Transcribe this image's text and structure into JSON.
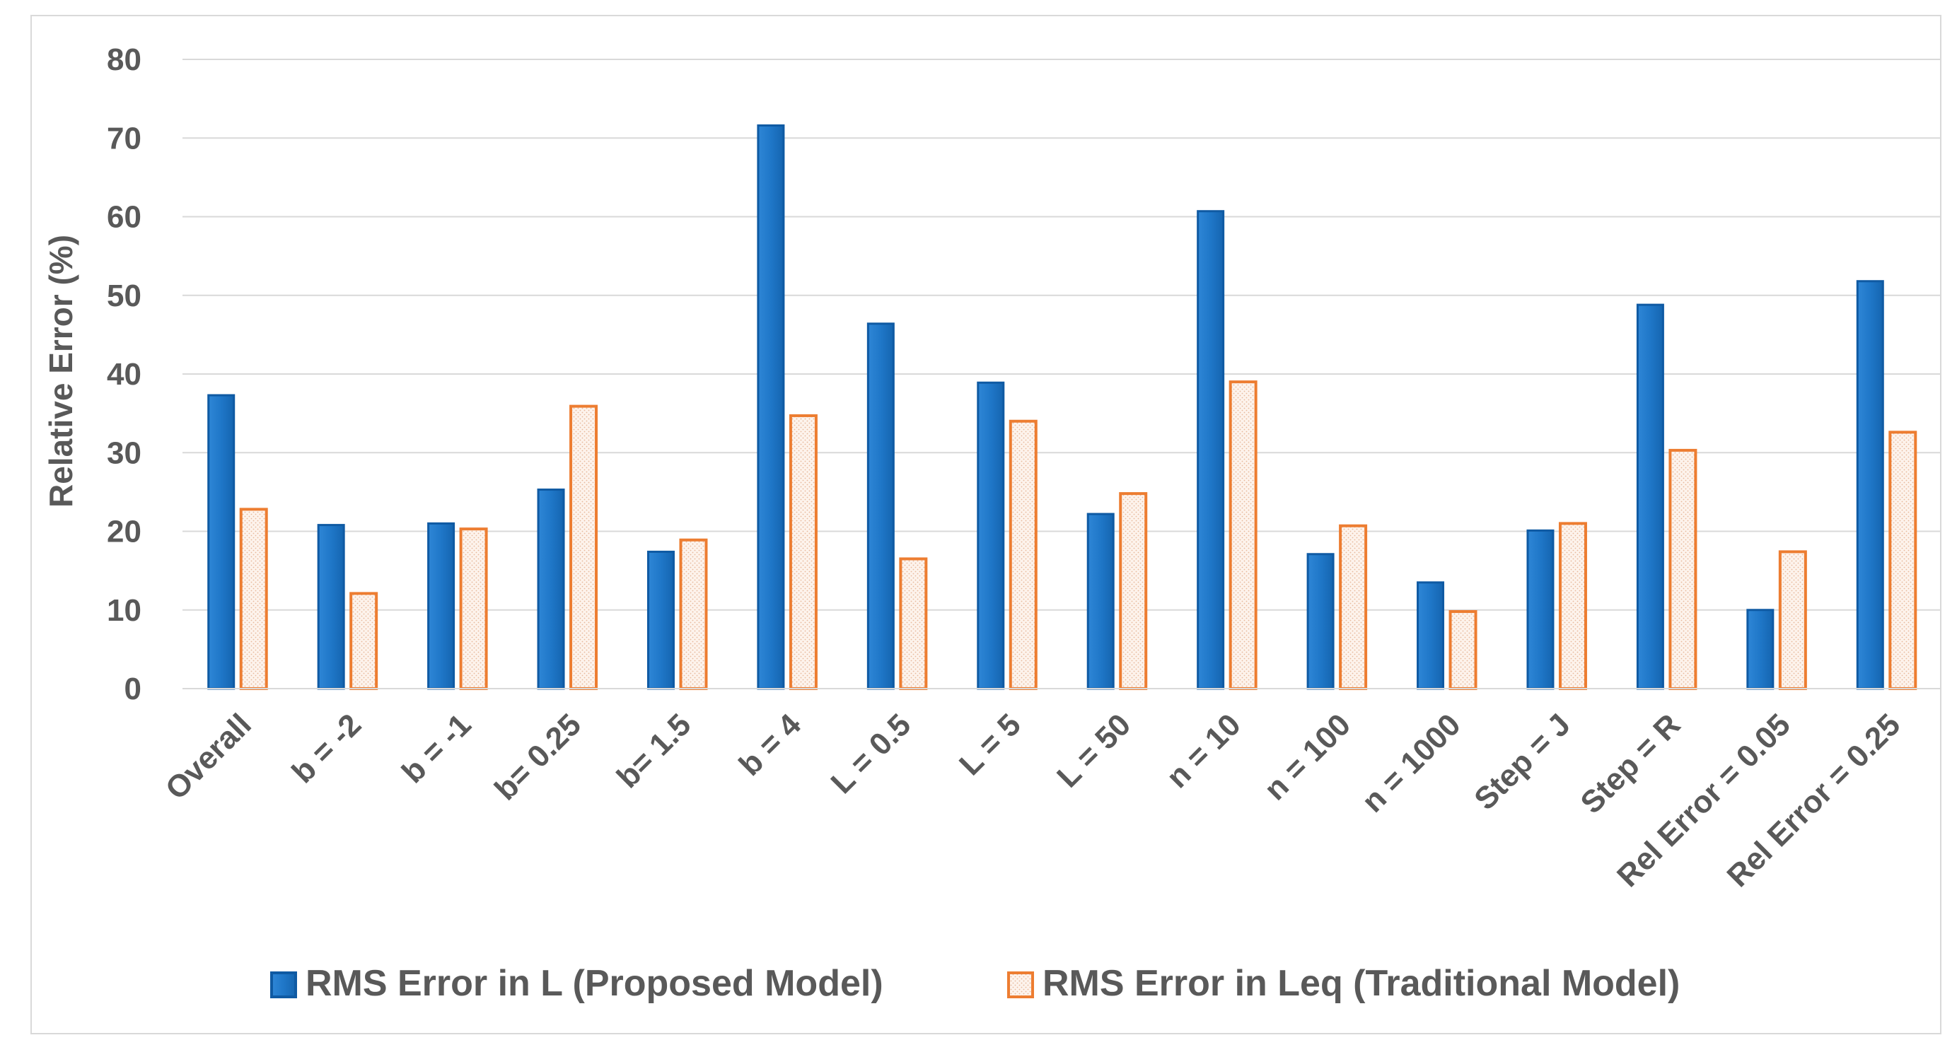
{
  "chart_data": {
    "type": "bar",
    "ylabel": "Relative Error (%)",
    "xlabel": "",
    "ylim": [
      0,
      80
    ],
    "yticks": [
      0,
      10,
      20,
      30,
      40,
      50,
      60,
      70,
      80
    ],
    "grid": true,
    "legend_position": "bottom",
    "categories": [
      "Overall",
      "b = -2",
      "b = -1",
      "b= 0.25",
      "b= 1.5",
      "b = 4",
      "L = 0.5",
      "L = 5",
      "L =  50",
      "n = 10",
      "n = 100",
      "n = 1000",
      "Step = J",
      "Step = R",
      "Rel Error = 0.05",
      "Rel Error = 0.25"
    ],
    "series": [
      {
        "name": "RMS Error in L (Proposed Model)",
        "color": "#1F77C8",
        "values": [
          37.3,
          20.8,
          21.0,
          25.3,
          17.4,
          71.6,
          46.4,
          38.9,
          22.2,
          60.7,
          17.1,
          13.5,
          20.1,
          48.8,
          10.0,
          51.8
        ]
      },
      {
        "name": "RMS Error in Leq (Traditional Model)",
        "color": "#ED7D31",
        "values": [
          22.8,
          12.1,
          20.3,
          35.9,
          18.9,
          34.7,
          16.5,
          34.0,
          24.8,
          39.0,
          20.7,
          9.8,
          21.0,
          30.3,
          17.4,
          32.6
        ]
      }
    ]
  }
}
